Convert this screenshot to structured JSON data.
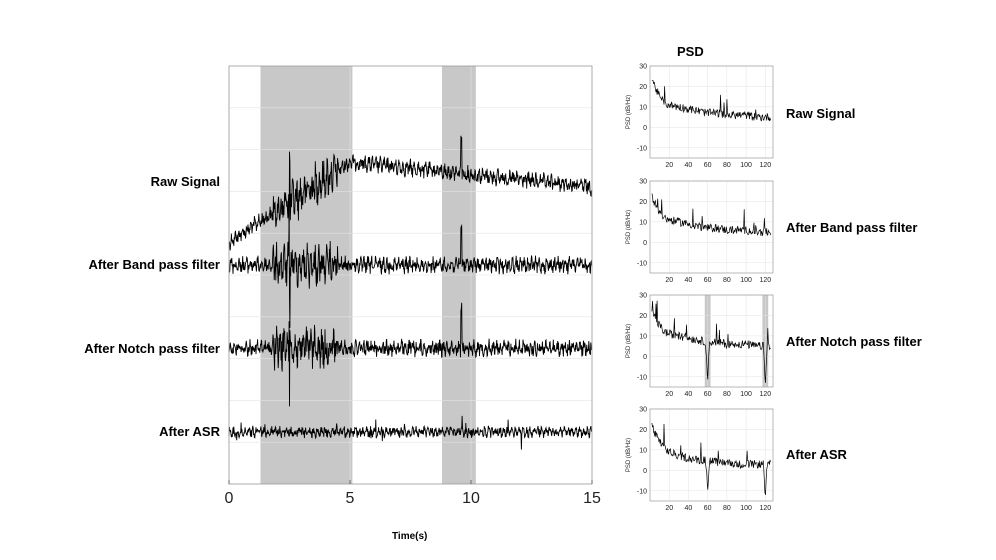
{
  "chart_data": [
    {
      "type": "line",
      "xlabel": "Time(s)",
      "xlim": [
        0,
        15
      ],
      "xticks": [
        0,
        5,
        10,
        15
      ],
      "ylim": [
        0,
        1
      ],
      "grid": true,
      "shaded_regions": [
        {
          "x_start": 1.3,
          "x_end": 5.1
        },
        {
          "x_start": 8.8,
          "x_end": 10.2
        }
      ],
      "series": [
        {
          "name": "Raw Signal"
        },
        {
          "name": "After Band pass filter"
        },
        {
          "name": "After Notch pass filter"
        },
        {
          "name": "After ASR"
        }
      ]
    },
    {
      "type": "line",
      "title": "PSD",
      "panels": [
        {
          "name": "Raw Signal",
          "ylabel": "PSD (dB/Hz)",
          "xlim": [
            0,
            128
          ],
          "ylim": [
            -15,
            30
          ],
          "xticks": [
            20,
            40,
            60,
            80,
            100,
            120
          ],
          "yticks": [
            -10,
            0,
            10,
            20,
            30
          ],
          "grid": true,
          "x": [
            2,
            5,
            10,
            15,
            20,
            30,
            40,
            50,
            60,
            70,
            80,
            90,
            100,
            110,
            120,
            125
          ],
          "y": [
            24,
            20,
            15,
            12,
            11,
            10,
            9,
            8,
            7,
            7,
            6,
            6,
            6,
            5,
            5,
            5
          ]
        },
        {
          "name": "After Band pass filter",
          "ylabel": "PSD (dB/Hz)",
          "xlim": [
            0,
            128
          ],
          "ylim": [
            -15,
            30
          ],
          "xticks": [
            20,
            40,
            60,
            80,
            100,
            120
          ],
          "yticks": [
            -10,
            0,
            10,
            20,
            30
          ],
          "grid": true,
          "x": [
            2,
            5,
            10,
            15,
            20,
            30,
            40,
            50,
            60,
            70,
            80,
            90,
            100,
            110,
            120,
            125
          ],
          "y": [
            23,
            19,
            15,
            12,
            11,
            10,
            9,
            8,
            7,
            7,
            6,
            6,
            6,
            5,
            5,
            5
          ]
        },
        {
          "name": "After Notch pass filter",
          "ylabel": "PSD (dB/Hz)",
          "xlim": [
            0,
            128
          ],
          "ylim": [
            -15,
            30
          ],
          "xticks": [
            20,
            40,
            60,
            80,
            100,
            120
          ],
          "yticks": [
            -10,
            0,
            10,
            20,
            30
          ],
          "grid": true,
          "shaded_regions": [
            {
              "x_start": 57,
              "x_end": 63
            },
            {
              "x_start": 117,
              "x_end": 123
            }
          ],
          "x": [
            2,
            5,
            10,
            15,
            20,
            30,
            40,
            50,
            58,
            60,
            62,
            70,
            80,
            90,
            100,
            110,
            118,
            120,
            122,
            125
          ],
          "y": [
            23,
            19,
            15,
            12,
            11,
            10,
            9,
            8,
            7,
            -12,
            7,
            7,
            6,
            6,
            6,
            5,
            5,
            -13,
            5,
            5
          ]
        },
        {
          "name": "After ASR",
          "ylabel": "PSD (dB/Hz)",
          "xlim": [
            0,
            128
          ],
          "ylim": [
            -15,
            30
          ],
          "xticks": [
            20,
            40,
            60,
            80,
            100,
            120
          ],
          "yticks": [
            -10,
            0,
            10,
            20,
            30
          ],
          "grid": true,
          "x": [
            2,
            5,
            10,
            15,
            20,
            30,
            40,
            50,
            58,
            60,
            62,
            70,
            80,
            90,
            100,
            110,
            118,
            120,
            122,
            125
          ],
          "y": [
            22,
            18,
            14,
            11,
            9,
            7,
            6,
            5,
            5,
            -10,
            5,
            4,
            4,
            3,
            3,
            3,
            3,
            -12,
            3,
            3
          ]
        }
      ]
    }
  ]
}
